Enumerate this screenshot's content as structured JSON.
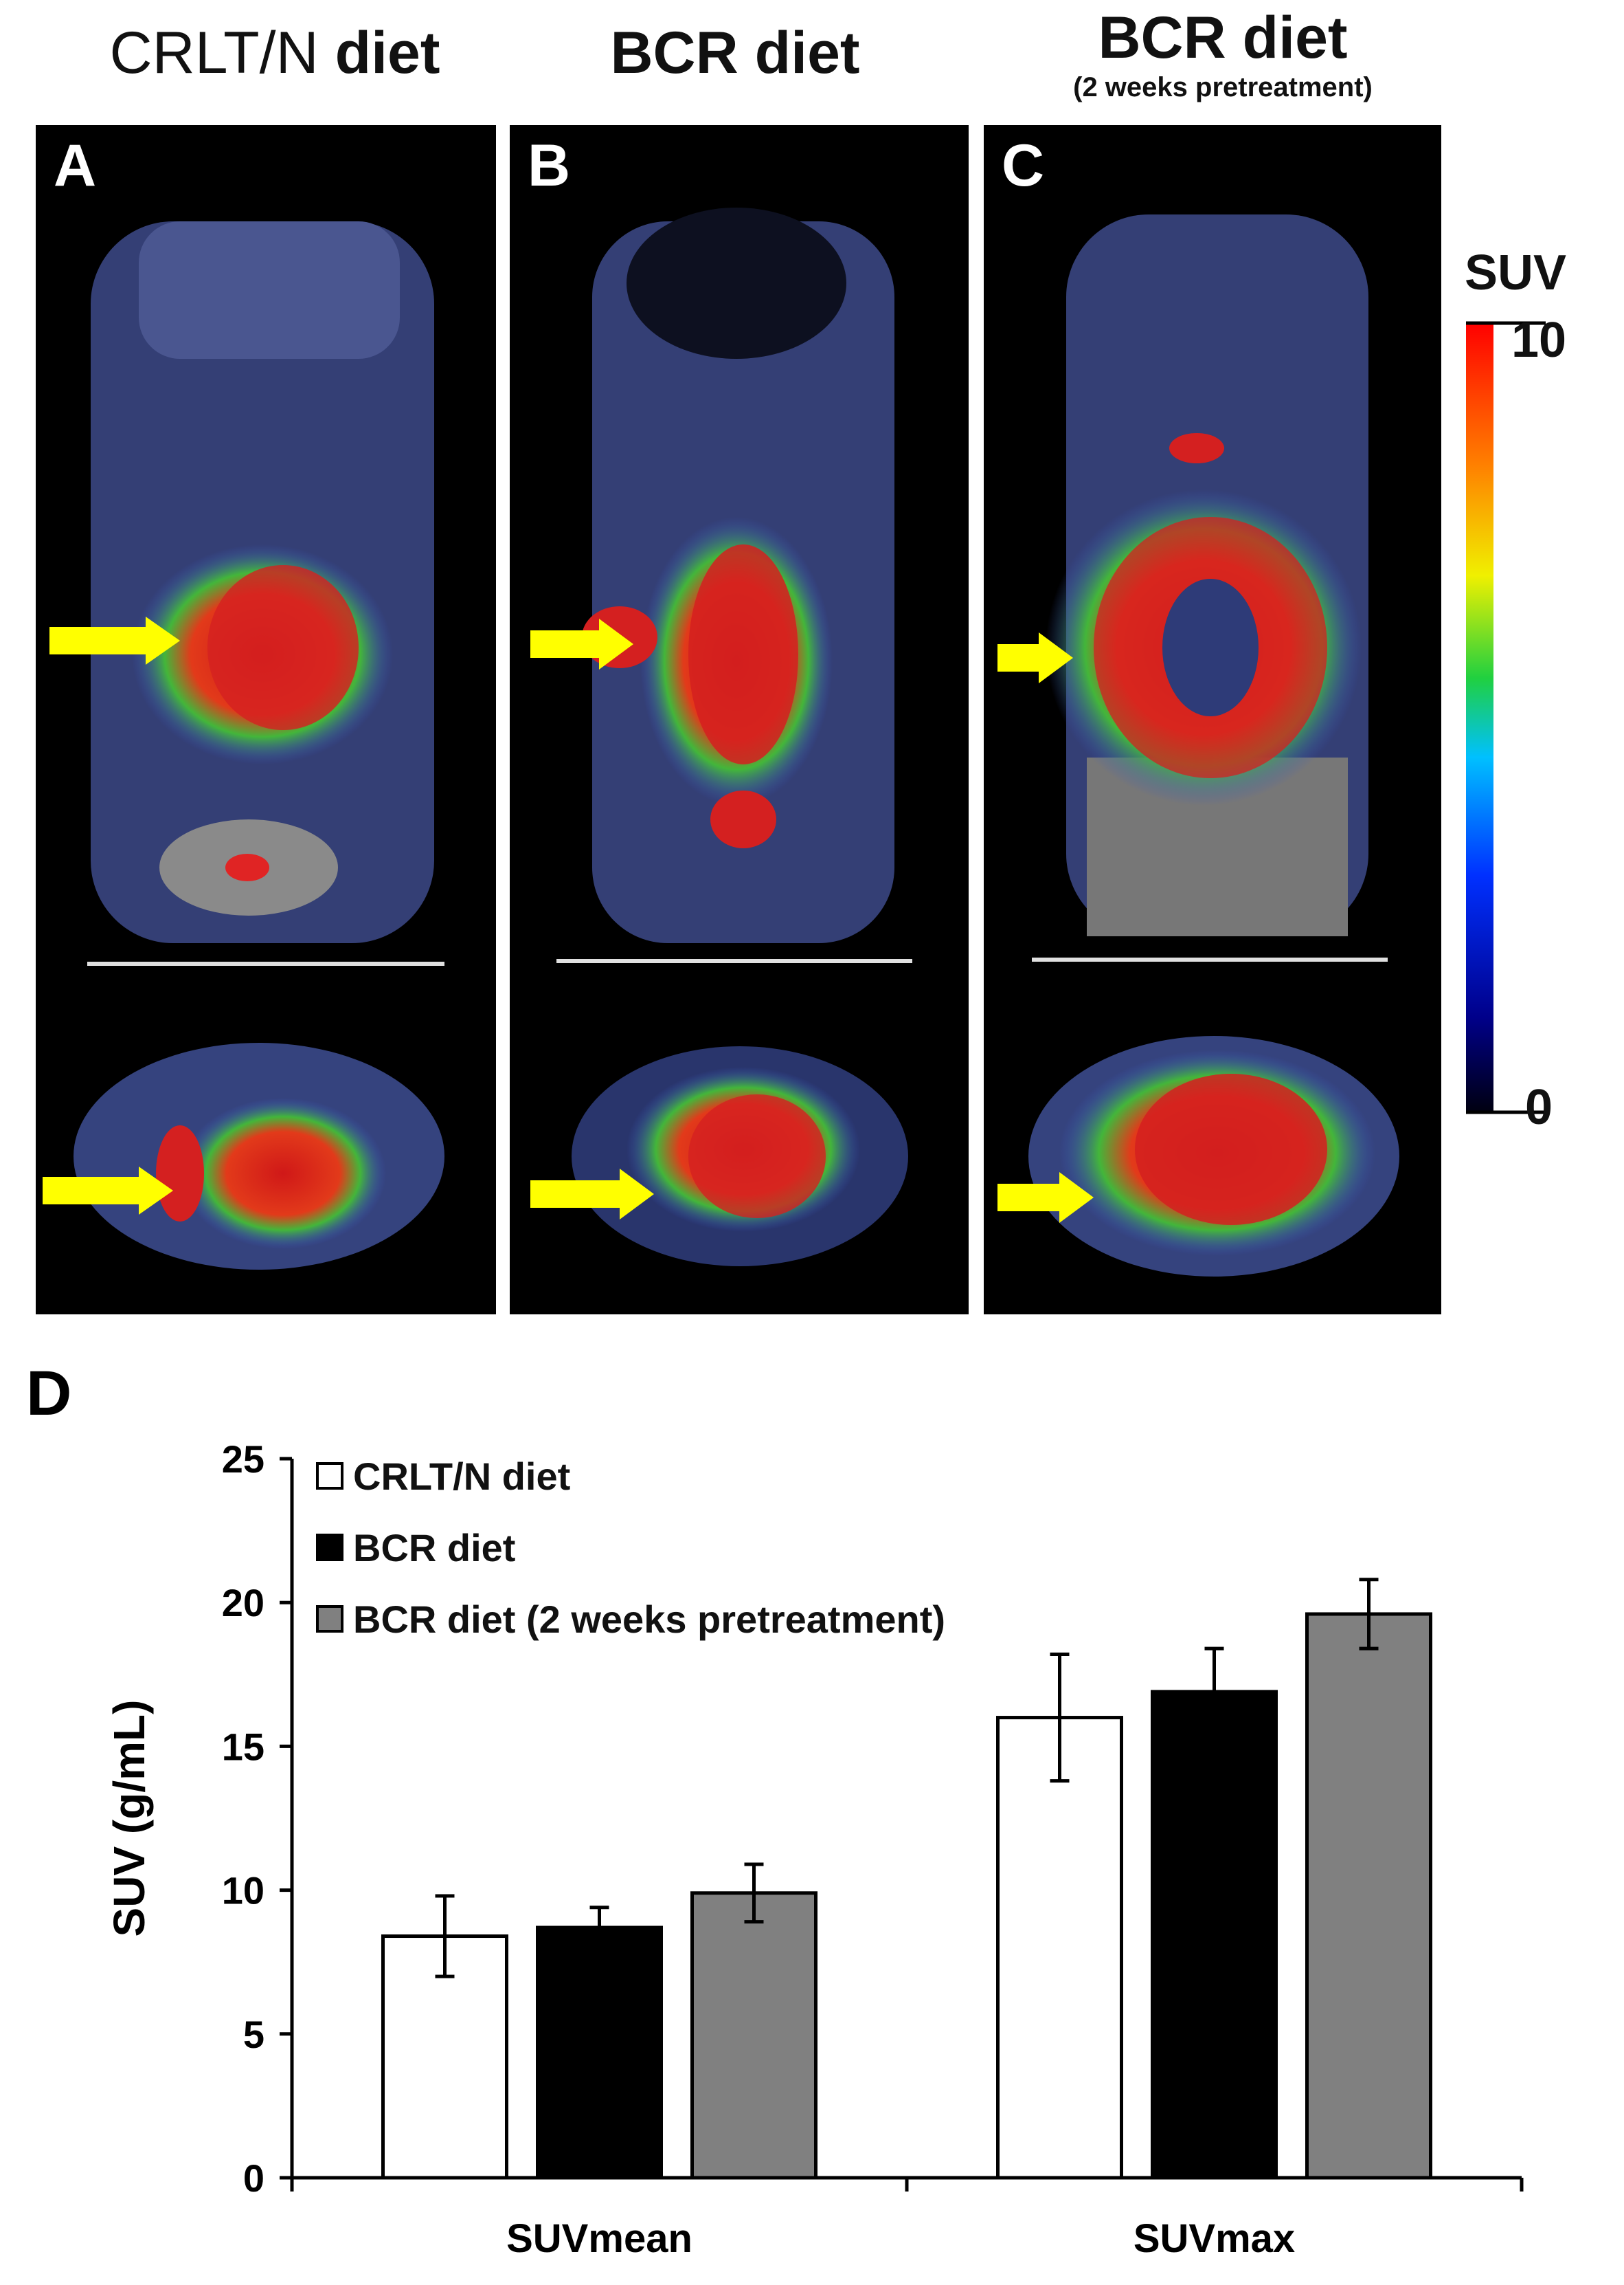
{
  "figure": {
    "columns": [
      {
        "title_a": "CRLT/N",
        "title_b": "diet",
        "subtitle": ""
      },
      {
        "title_a": "BCR diet",
        "title_b": "",
        "subtitle": ""
      },
      {
        "title_a": "BCR diet",
        "title_b": "",
        "subtitle": "(2 weeks pretreatment)"
      }
    ],
    "panels": [
      {
        "letter": "A"
      },
      {
        "letter": "B"
      },
      {
        "letter": "C"
      }
    ],
    "colorbar": {
      "title": "SUV",
      "max_label": "10",
      "min_label": "0"
    },
    "panel_d_letter": "D"
  },
  "chart_data": {
    "type": "bar",
    "categories": [
      "SUVmean",
      "SUVmax"
    ],
    "series": [
      {
        "name": "CRLT/N diet",
        "color": "#ffffff",
        "values": [
          8.4,
          16.0
        ],
        "errors": [
          1.4,
          2.2
        ]
      },
      {
        "name": "BCR diet",
        "color": "#000000",
        "values": [
          8.7,
          16.9
        ],
        "errors": [
          0.7,
          1.5
        ]
      },
      {
        "name": "BCR diet (2 weeks pretreatment)",
        "color": "#808080",
        "values": [
          9.9,
          19.6
        ],
        "errors": [
          1.0,
          1.2
        ]
      }
    ],
    "ylabel": "SUV (g/mL)",
    "ylim": [
      0,
      25
    ],
    "yticks": [
      "0",
      "5",
      "10",
      "15",
      "20",
      "25"
    ],
    "grid": false
  }
}
